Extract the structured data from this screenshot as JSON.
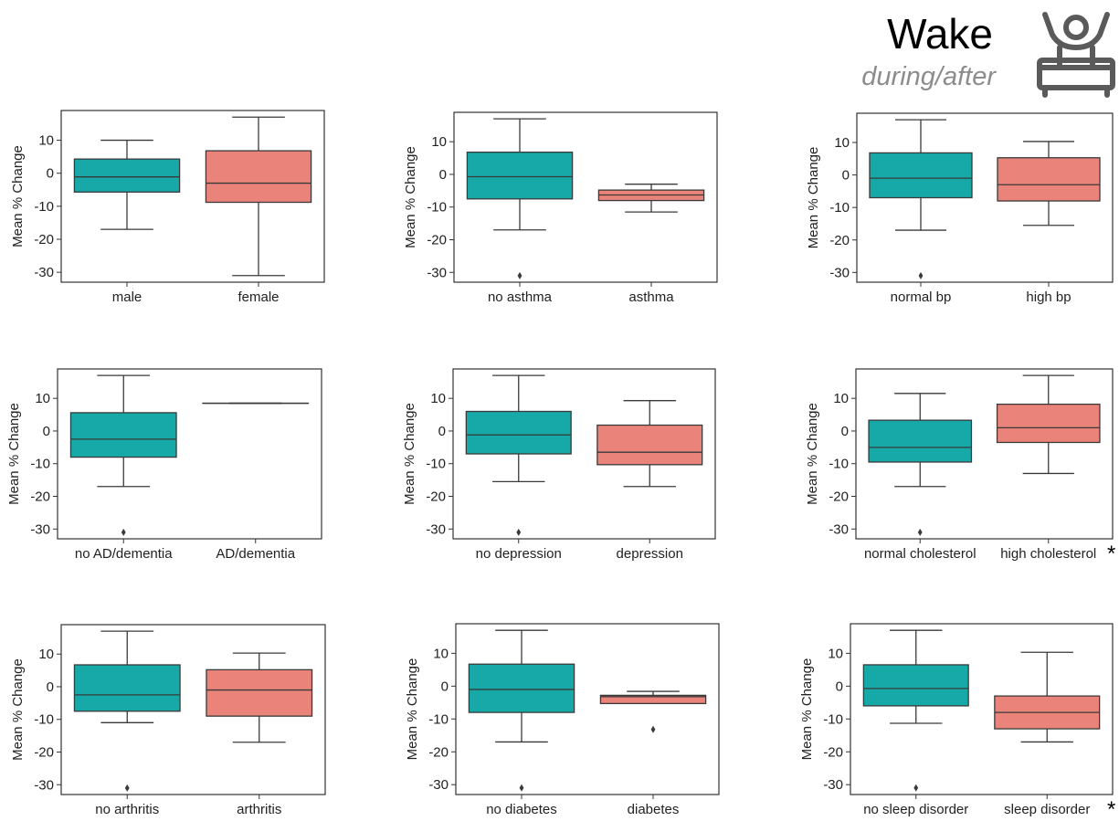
{
  "header": {
    "title": "Wake",
    "subtitle": "during/after",
    "icon": "person-waking-in-bed-icon"
  },
  "colors": {
    "group_a": "#17a8a8",
    "group_b": "#ea8379",
    "line": "#3a3a3a"
  },
  "chart_data": [
    {
      "type": "box",
      "ylabel": "Mean % Change",
      "ylim": [
        -33,
        19
      ],
      "yticks": [
        10,
        0,
        -10,
        -20,
        -30
      ],
      "categories": [
        "male",
        "female"
      ],
      "significant": false,
      "boxes": [
        {
          "category": "male",
          "whisker_low": -17,
          "q1": -5.7,
          "median": -1.1,
          "q3": 4.3,
          "whisker_high": 10,
          "outliers": []
        },
        {
          "category": "female",
          "whisker_low": -31,
          "q1": -8.8,
          "median": -3,
          "q3": 6.8,
          "whisker_high": 17,
          "outliers": []
        }
      ]
    },
    {
      "type": "box",
      "ylabel": "Mean % Change",
      "ylim": [
        -33,
        19
      ],
      "yticks": [
        10,
        0,
        -10,
        -20,
        -30
      ],
      "categories": [
        "no asthma",
        "asthma"
      ],
      "significant": false,
      "boxes": [
        {
          "category": "no asthma",
          "whisker_low": -17,
          "q1": -7.5,
          "median": -0.7,
          "q3": 6.8,
          "whisker_high": 17,
          "outliers": [
            -31
          ]
        },
        {
          "category": "asthma",
          "whisker_low": -11.5,
          "q1": -8,
          "median": -6.3,
          "q3": -4.8,
          "whisker_high": -3,
          "outliers": []
        }
      ]
    },
    {
      "type": "box",
      "ylabel": "Mean % Change",
      "ylim": [
        -33,
        19
      ],
      "yticks": [
        10,
        0,
        -10,
        -20,
        -30
      ],
      "categories": [
        "normal bp",
        "high bp"
      ],
      "significant": false,
      "boxes": [
        {
          "category": "normal bp",
          "whisker_low": -17,
          "q1": -7,
          "median": -1,
          "q3": 6.8,
          "whisker_high": 17,
          "outliers": [
            -31
          ]
        },
        {
          "category": "high bp",
          "whisker_low": -15.5,
          "q1": -8,
          "median": -3,
          "q3": 5.3,
          "whisker_high": 10.3,
          "outliers": []
        }
      ]
    },
    {
      "type": "box",
      "ylabel": "Mean % Change",
      "ylim": [
        -33,
        19
      ],
      "yticks": [
        10,
        0,
        -10,
        -20,
        -30
      ],
      "categories": [
        "no AD/dementia",
        "AD/dementia"
      ],
      "significant": false,
      "boxes": [
        {
          "category": "no AD/dementia",
          "whisker_low": -17,
          "q1": -8,
          "median": -2.5,
          "q3": 5.6,
          "whisker_high": 17,
          "outliers": [
            -31
          ]
        },
        {
          "category": "AD/dementia",
          "whisker_low": 8.5,
          "q1": 8.5,
          "median": 8.5,
          "q3": 8.5,
          "whisker_high": 8.5,
          "outliers": []
        }
      ]
    },
    {
      "type": "box",
      "ylabel": "Mean % Change",
      "ylim": [
        -33,
        19
      ],
      "yticks": [
        10,
        0,
        -10,
        -20,
        -30
      ],
      "categories": [
        "no depression",
        "depression"
      ],
      "significant": false,
      "boxes": [
        {
          "category": "no depression",
          "whisker_low": -15.5,
          "q1": -7,
          "median": -1.2,
          "q3": 6,
          "whisker_high": 17,
          "outliers": [
            -31
          ]
        },
        {
          "category": "depression",
          "whisker_low": -17,
          "q1": -10.3,
          "median": -6.5,
          "q3": 1.8,
          "whisker_high": 9.3,
          "outliers": []
        }
      ]
    },
    {
      "type": "box",
      "ylabel": "Mean % Change",
      "ylim": [
        -33,
        19
      ],
      "yticks": [
        10,
        0,
        -10,
        -20,
        -30
      ],
      "categories": [
        "normal cholesterol",
        "high cholesterol"
      ],
      "significant": true,
      "significance_marker": "*",
      "boxes": [
        {
          "category": "normal cholesterol",
          "whisker_low": -17,
          "q1": -9.5,
          "median": -5,
          "q3": 3.3,
          "whisker_high": 11.5,
          "outliers": [
            -31
          ]
        },
        {
          "category": "high cholesterol",
          "whisker_low": -13,
          "q1": -3.5,
          "median": 1,
          "q3": 8.2,
          "whisker_high": 17,
          "outliers": []
        }
      ]
    },
    {
      "type": "box",
      "ylabel": "Mean % Change",
      "ylim": [
        -33,
        19
      ],
      "yticks": [
        10,
        0,
        -10,
        -20,
        -30
      ],
      "categories": [
        "no arthritis",
        "arthritis"
      ],
      "significant": false,
      "boxes": [
        {
          "category": "no arthritis",
          "whisker_low": -11,
          "q1": -7.5,
          "median": -2.5,
          "q3": 6.7,
          "whisker_high": 17,
          "outliers": [
            -31
          ]
        },
        {
          "category": "arthritis",
          "whisker_low": -17,
          "q1": -9,
          "median": -1,
          "q3": 5.2,
          "whisker_high": 10.3,
          "outliers": []
        }
      ]
    },
    {
      "type": "box",
      "ylabel": "Mean % Change",
      "ylim": [
        -33,
        19
      ],
      "yticks": [
        10,
        0,
        -10,
        -20,
        -30
      ],
      "categories": [
        "no diabetes",
        "diabetes"
      ],
      "significant": false,
      "boxes": [
        {
          "category": "no diabetes",
          "whisker_low": -17,
          "q1": -8,
          "median": -1,
          "q3": 6.7,
          "whisker_high": 17,
          "outliers": [
            -31
          ]
        },
        {
          "category": "diabetes",
          "whisker_low": -5.3,
          "q1": -5.3,
          "median": -3.2,
          "q3": -2.8,
          "whisker_high": -1.6,
          "outliers": [
            -13.2
          ]
        }
      ]
    },
    {
      "type": "box",
      "ylabel": "Mean % Change",
      "ylim": [
        -33,
        19
      ],
      "yticks": [
        10,
        0,
        -10,
        -20,
        -30
      ],
      "categories": [
        "no sleep disorder",
        "sleep disorder"
      ],
      "significant": true,
      "significance_marker": "*",
      "boxes": [
        {
          "category": "no sleep disorder",
          "whisker_low": -11.3,
          "q1": -6,
          "median": -0.7,
          "q3": 6.5,
          "whisker_high": 17,
          "outliers": [
            -31
          ]
        },
        {
          "category": "sleep disorder",
          "whisker_low": -17,
          "q1": -13,
          "median": -8,
          "q3": -3,
          "whisker_high": 10.3,
          "outliers": []
        }
      ]
    }
  ]
}
